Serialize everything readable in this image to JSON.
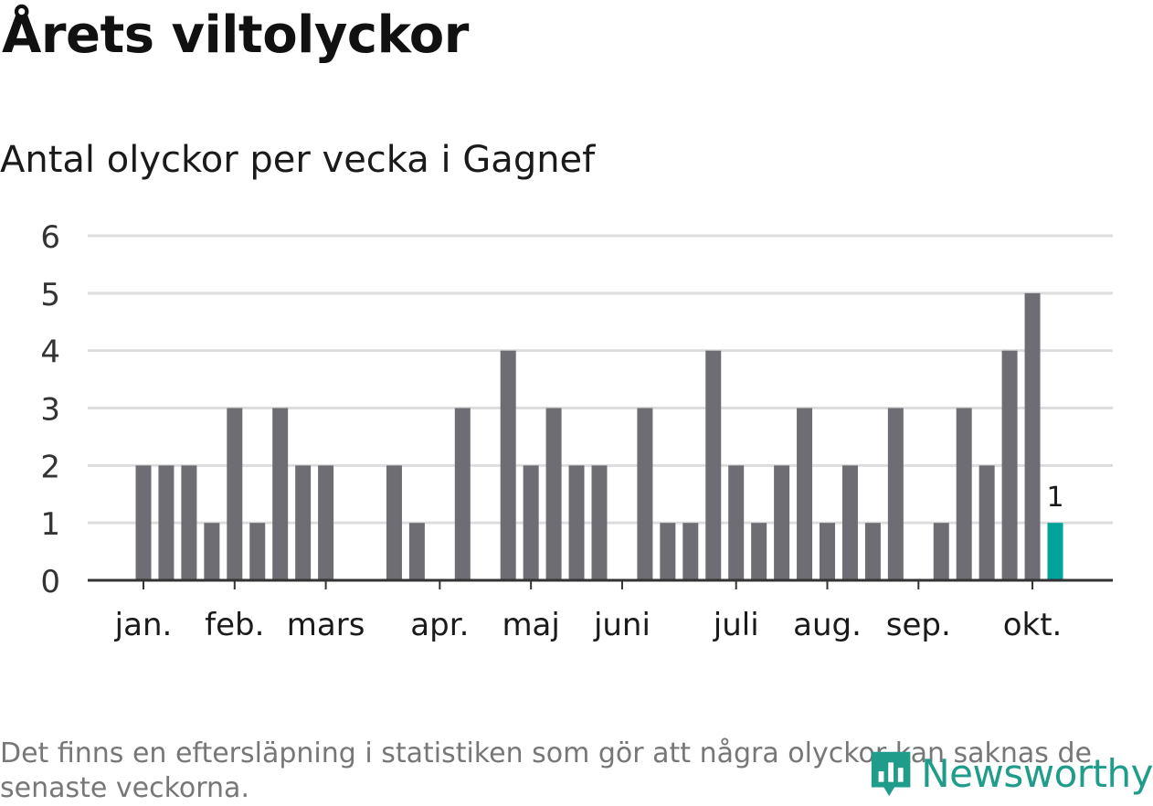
{
  "title": "Årets viltolyckor",
  "subtitle": "Antal olyckor per vecka i Gagnef",
  "note": "Det finns en eftersläpning i statistiken som gör att några olyckor kan saknas de senaste veckorna.",
  "logo_text": "Newsworthy",
  "colors": {
    "bar": "#6e6d73",
    "highlight": "#00a39a",
    "grid": "#dddddd",
    "axis": "#333333",
    "logo": "#1f9c8a"
  },
  "chart_data": {
    "type": "bar",
    "xlabel": "",
    "ylabel": "",
    "ylim": [
      0,
      6
    ],
    "yticks": [
      "0",
      "1",
      "2",
      "3",
      "4",
      "5",
      "6"
    ],
    "grid": true,
    "month_labels": [
      "jan.",
      "feb.",
      "mars",
      "apr.",
      "maj",
      "juni",
      "juli",
      "aug.",
      "sep.",
      "okt."
    ],
    "month_start_week": [
      1,
      5,
      9,
      14,
      18,
      22,
      27,
      31,
      35,
      40
    ],
    "weeks": [
      1,
      2,
      3,
      4,
      5,
      6,
      7,
      8,
      9,
      10,
      11,
      12,
      13,
      14,
      15,
      16,
      17,
      18,
      19,
      20,
      21,
      22,
      23,
      24,
      25,
      26,
      27,
      28,
      29,
      30,
      31,
      32,
      33,
      34,
      35,
      36,
      37,
      38,
      39,
      40,
      41
    ],
    "values": [
      2,
      2,
      2,
      1,
      3,
      1,
      3,
      2,
      2,
      0,
      0,
      2,
      1,
      0,
      3,
      0,
      4,
      2,
      3,
      2,
      2,
      0,
      3,
      1,
      1,
      4,
      2,
      1,
      2,
      3,
      1,
      2,
      1,
      3,
      0,
      1,
      3,
      2,
      4,
      5,
      1
    ],
    "highlight_index": 40,
    "data_label": "1"
  }
}
